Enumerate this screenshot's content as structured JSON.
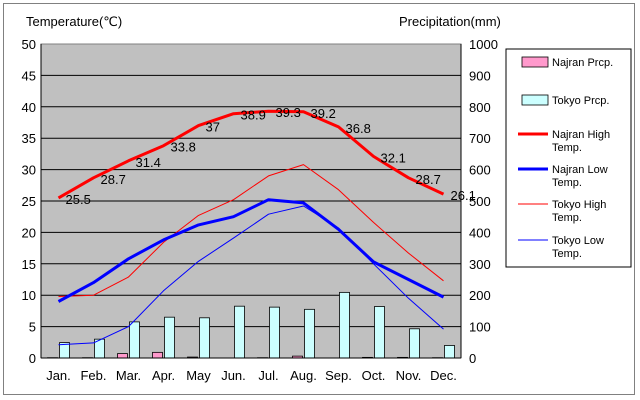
{
  "chart_data": {
    "type": "bar+line",
    "categories": [
      "Jan.",
      "Feb.",
      "Mar.",
      "Apr.",
      "May",
      "Jun.",
      "Jul.",
      "Aug.",
      "Sep.",
      "Oct.",
      "Nov.",
      "Dec."
    ],
    "y_left": {
      "label": "Temperature(℃)",
      "min": 0,
      "max": 50,
      "step": 5
    },
    "y_right": {
      "label": "Precipitation(mm)",
      "min": 0,
      "max": 1000,
      "step": 100
    },
    "grid": true,
    "legend_position": "right",
    "bar_series": [
      {
        "name": "Najran Prcp.",
        "axis": "right",
        "color": "#ff99cc",
        "values": [
          1,
          1,
          14,
          18,
          3,
          0,
          1,
          6,
          0,
          2,
          2,
          1
        ]
      },
      {
        "name": "Tokyo Prcp.",
        "axis": "right",
        "color": "#ccffff",
        "values": [
          49,
          60,
          115,
          130,
          128,
          165,
          162,
          155,
          209,
          164,
          93,
          40
        ]
      }
    ],
    "line_series": [
      {
        "name": "Najran High Temp.",
        "axis": "left",
        "color": "#ff0000",
        "width": 3,
        "values": [
          25.5,
          28.7,
          31.4,
          33.8,
          37,
          38.9,
          39.3,
          39.2,
          36.8,
          32.1,
          28.7,
          26.1
        ],
        "data_labels": [
          "25.5",
          "28.7",
          "31.4",
          "33.8",
          "37",
          "38.9",
          "39.3",
          "39.2",
          "36.8",
          "32.1",
          "28.7",
          "26.1"
        ]
      },
      {
        "name": "Najran Low Temp.",
        "axis": "left",
        "color": "#0000ff",
        "width": 3,
        "values": [
          9.0,
          12.0,
          15.8,
          18.8,
          21.2,
          22.5,
          25.2,
          24.7,
          20.5,
          15.3,
          12.5,
          9.7
        ]
      },
      {
        "name": "Tokyo High Temp.",
        "axis": "left",
        "color": "#ff0000",
        "width": 1,
        "values": [
          9.8,
          10.0,
          12.9,
          18.4,
          22.7,
          25.2,
          29.0,
          30.8,
          26.8,
          21.6,
          16.7,
          12.3
        ]
      },
      {
        "name": "Tokyo Low Temp.",
        "axis": "left",
        "color": "#0000ff",
        "width": 1,
        "values": [
          2.1,
          2.4,
          5.0,
          10.7,
          15.4,
          19.1,
          22.9,
          24.2,
          20.7,
          15.0,
          9.5,
          4.6
        ]
      }
    ]
  }
}
